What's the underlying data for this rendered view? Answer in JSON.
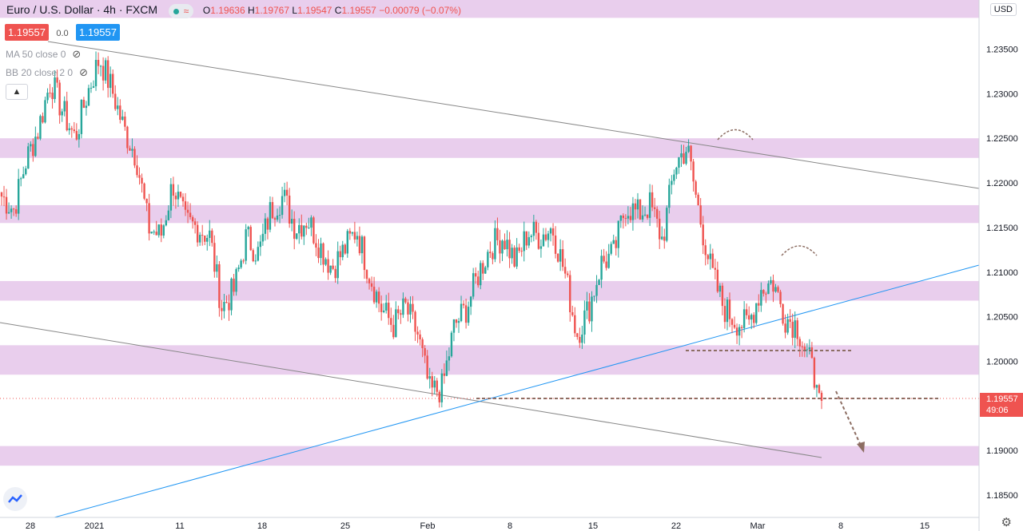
{
  "legend": {
    "symbol": "Euro / U.S. Dollar · 4h · FXCM",
    "open_label": "O",
    "open": "1.19636",
    "high_label": "H",
    "high": "1.19767",
    "low_label": "L",
    "low": "1.19547",
    "close_label": "C",
    "close": "1.19557",
    "change": "−0.00079 (−0.07%)",
    "wave_icon": "wave-icon"
  },
  "quote": {
    "sell": "1.19557",
    "spread": "0.0",
    "buy": "1.19557"
  },
  "indicators": [
    {
      "label": "MA 50 close 0",
      "icon": "eye-off-icon"
    },
    {
      "label": "BB 20 close 2 0",
      "icon": "eye-off-icon"
    }
  ],
  "currency": "USD",
  "last_price": {
    "value": "1.19557",
    "countdown": "49:06"
  },
  "colors": {
    "up": "#26a69a",
    "down": "#ef5350",
    "zone": "#e1bee7",
    "trend": "#2196f3",
    "level": "#8d6e63",
    "channel": "#888888"
  },
  "chart_data": {
    "type": "candlestick",
    "y_ticks": [
      "1.18500",
      "1.19000",
      "1.19500",
      "1.20000",
      "1.20500",
      "1.21000",
      "1.21500",
      "1.22000",
      "1.22500",
      "1.23000",
      "1.23500"
    ],
    "y_values": [
      1.185,
      1.19,
      1.195,
      1.2,
      1.205,
      1.21,
      1.215,
      1.22,
      1.225,
      1.23,
      1.235
    ],
    "x_ticks": [
      "28",
      "2021",
      "11",
      "18",
      "25",
      "Feb",
      "8",
      "15",
      "22",
      "Mar",
      "8",
      "15"
    ],
    "ylim": [
      1.1825,
      1.2405
    ],
    "resistance_zones": [
      [
        1.2385,
        1.2405
      ],
      [
        1.2228,
        1.225
      ],
      [
        1.2155,
        1.2175
      ],
      [
        1.2068,
        1.209
      ],
      [
        1.1985,
        1.2018
      ],
      [
        1.1883,
        1.1905
      ]
    ],
    "dashed_levels": [
      1.201,
      1.19557
    ],
    "close_path": [
      1.2185,
      1.217,
      1.2225,
      1.226,
      1.2315,
      1.228,
      1.225,
      1.23,
      1.234,
      1.2305,
      1.226,
      1.223,
      1.215,
      1.214,
      1.22,
      1.2155,
      1.215,
      1.214,
      1.206,
      1.208,
      1.214,
      1.212,
      1.217,
      1.2185,
      1.215,
      1.216,
      1.213,
      1.2105,
      1.2125,
      1.2148,
      1.21,
      1.206,
      1.204,
      1.206,
      1.203,
      1.1965,
      1.197,
      1.204,
      1.206,
      1.21,
      1.213,
      1.214,
      1.211,
      1.2145,
      1.214,
      1.215,
      1.21,
      1.203,
      1.206,
      1.211,
      1.212,
      1.2175,
      1.2165,
      1.2175,
      1.2135,
      1.222,
      1.224,
      1.2165,
      1.21,
      1.206,
      1.2045,
      1.204,
      1.208,
      1.209,
      1.205,
      1.204,
      1.2,
      1.1956
    ]
  }
}
